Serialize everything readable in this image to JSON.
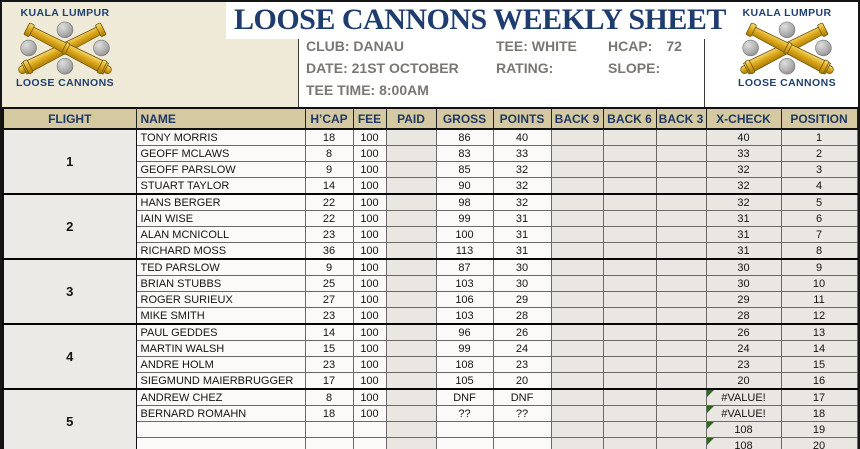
{
  "title": "LOOSE CANNONS WEEKLY SHEET",
  "logos": {
    "left": {
      "top_text": "KUALA LUMPUR",
      "bottom_text": "LOOSE CANNONS"
    },
    "right": {
      "top_text": "KUALA LUMPUR",
      "bottom_text": "LOOSE CANNONS"
    }
  },
  "info": {
    "club": "CLUB: DANAU",
    "tee": "TEE: WHITE",
    "hcap_label": "HCAP:",
    "hcap_value": "72",
    "date": "DATE: 21ST OCTOBER",
    "rating": "RATING:",
    "slope": "SLOPE:",
    "tee_time": "TEE TIME: 8:00AM"
  },
  "table": {
    "headers": [
      "FLIGHT",
      "NAME",
      "H’CAP",
      "FEE",
      "PAID",
      "GROSS",
      "POINTS",
      "BACK 9",
      "BACK 6",
      "BACK 3",
      "X-CHECK",
      "POSITION"
    ],
    "flights": [
      {
        "flight": "1",
        "rows": [
          {
            "name": "TONY MORRIS",
            "hcap": "18",
            "fee": "100",
            "paid": "",
            "gross": "86",
            "points": "40",
            "back9": "",
            "back6": "",
            "back3": "",
            "xcheck": "40",
            "position": "1"
          },
          {
            "name": "GEOFF MCLAWS",
            "hcap": "8",
            "fee": "100",
            "paid": "",
            "gross": "83",
            "points": "33",
            "back9": "",
            "back6": "",
            "back3": "",
            "xcheck": "33",
            "position": "2"
          },
          {
            "name": "GEOFF PARSLOW",
            "hcap": "9",
            "fee": "100",
            "paid": "",
            "gross": "85",
            "points": "32",
            "back9": "",
            "back6": "",
            "back3": "",
            "xcheck": "32",
            "position": "3"
          },
          {
            "name": "STUART TAYLOR",
            "hcap": "14",
            "fee": "100",
            "paid": "",
            "gross": "90",
            "points": "32",
            "back9": "",
            "back6": "",
            "back3": "",
            "xcheck": "32",
            "position": "4"
          }
        ]
      },
      {
        "flight": "2",
        "rows": [
          {
            "name": "HANS BERGER",
            "hcap": "22",
            "fee": "100",
            "paid": "",
            "gross": "98",
            "points": "32",
            "back9": "",
            "back6": "",
            "back3": "",
            "xcheck": "32",
            "position": "5"
          },
          {
            "name": "IAIN WISE",
            "hcap": "22",
            "fee": "100",
            "paid": "",
            "gross": "99",
            "points": "31",
            "back9": "",
            "back6": "",
            "back3": "",
            "xcheck": "31",
            "position": "6"
          },
          {
            "name": "ALAN MCNICOLL",
            "hcap": "23",
            "fee": "100",
            "paid": "",
            "gross": "100",
            "points": "31",
            "back9": "",
            "back6": "",
            "back3": "",
            "xcheck": "31",
            "position": "7"
          },
          {
            "name": "RICHARD MOSS",
            "hcap": "36",
            "fee": "100",
            "paid": "",
            "gross": "113",
            "points": "31",
            "back9": "",
            "back6": "",
            "back3": "",
            "xcheck": "31",
            "position": "8"
          }
        ]
      },
      {
        "flight": "3",
        "rows": [
          {
            "name": "TED PARSLOW",
            "hcap": "9",
            "fee": "100",
            "paid": "",
            "gross": "87",
            "points": "30",
            "back9": "",
            "back6": "",
            "back3": "",
            "xcheck": "30",
            "position": "9"
          },
          {
            "name": "BRIAN STUBBS",
            "hcap": "25",
            "fee": "100",
            "paid": "",
            "gross": "103",
            "points": "30",
            "back9": "",
            "back6": "",
            "back3": "",
            "xcheck": "30",
            "position": "10"
          },
          {
            "name": "ROGER SURIEUX",
            "hcap": "27",
            "fee": "100",
            "paid": "",
            "gross": "106",
            "points": "29",
            "back9": "",
            "back6": "",
            "back3": "",
            "xcheck": "29",
            "position": "11"
          },
          {
            "name": "MIKE SMITH",
            "hcap": "23",
            "fee": "100",
            "paid": "",
            "gross": "103",
            "points": "28",
            "back9": "",
            "back6": "",
            "back3": "",
            "xcheck": "28",
            "position": "12"
          }
        ]
      },
      {
        "flight": "4",
        "rows": [
          {
            "name": "PAUL GEDDES",
            "hcap": "14",
            "fee": "100",
            "paid": "",
            "gross": "96",
            "points": "26",
            "back9": "",
            "back6": "",
            "back3": "",
            "xcheck": "26",
            "position": "13",
            "edge_mark": true
          },
          {
            "name": "MARTIN WALSH",
            "hcap": "15",
            "fee": "100",
            "paid": "",
            "gross": "99",
            "points": "24",
            "back9": "",
            "back6": "",
            "back3": "",
            "xcheck": "24",
            "position": "14",
            "edge_mark": true
          },
          {
            "name": "ANDRE HOLM",
            "hcap": "23",
            "fee": "100",
            "paid": "",
            "gross": "108",
            "points": "23",
            "back9": "",
            "back6": "",
            "back3": "",
            "xcheck": "23",
            "position": "15",
            "edge_mark": true
          },
          {
            "name": "SIEGMUND MAIERBRUGGER",
            "hcap": "17",
            "fee": "100",
            "paid": "",
            "gross": "105",
            "points": "20",
            "back9": "",
            "back6": "",
            "back3": "",
            "xcheck": "20",
            "position": "16",
            "edge_mark": true
          }
        ]
      },
      {
        "flight": "5",
        "rows": [
          {
            "name": "ANDREW CHEZ",
            "hcap": "8",
            "fee": "100",
            "paid": "",
            "gross": "DNF",
            "points": "DNF",
            "back9": "",
            "back6": "",
            "back3": "",
            "xcheck": "#VALUE!",
            "position": "17",
            "x_err": true
          },
          {
            "name": "BERNARD ROMAHN",
            "hcap": "18",
            "fee": "100",
            "paid": "",
            "gross": "??",
            "points": "??",
            "back9": "",
            "back6": "",
            "back3": "",
            "xcheck": "#VALUE!",
            "position": "18",
            "x_err": true
          },
          {
            "name": "",
            "hcap": "",
            "fee": "",
            "paid": "",
            "gross": "",
            "points": "",
            "back9": "",
            "back6": "",
            "back3": "",
            "xcheck": "108",
            "position": "19",
            "x_err": true
          },
          {
            "name": "",
            "hcap": "",
            "fee": "",
            "paid": "",
            "gross": "",
            "points": "",
            "back9": "",
            "back6": "",
            "back3": "",
            "xcheck": "108",
            "position": "20",
            "x_err": true
          }
        ]
      }
    ]
  },
  "colors": {
    "accent_navy": "#1f3864",
    "header_tan": "#d5c9a1",
    "beige_panel": "#efe9d7",
    "grey_cell": "#eae7e3",
    "error_green": "#2f6b1f",
    "info_grey": "#7a7672",
    "cannon_gold": "#d9a61a"
  }
}
